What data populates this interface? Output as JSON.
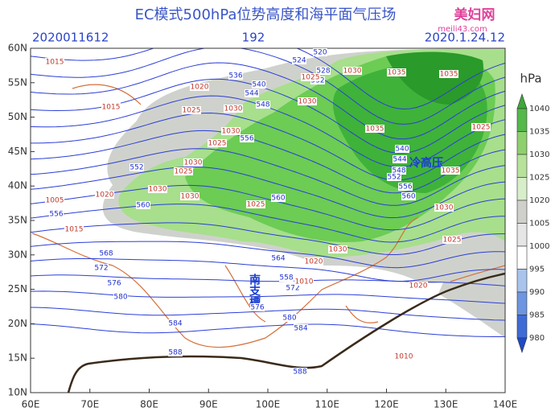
{
  "header": {
    "title": "EC模式500hPa位势高度和海平面气压场",
    "init_time": "2020011612",
    "forecast_hour": "192",
    "valid_time": "2020.1.24.12",
    "watermark": "美妇网",
    "watermark_url": "meili43.com"
  },
  "map": {
    "lat_labels": [
      "60N",
      "55N",
      "50N",
      "45N",
      "40N",
      "35N",
      "30N",
      "25N",
      "20N",
      "15N",
      "10N"
    ],
    "lon_labels": [
      "60E",
      "70E",
      "80E",
      "90E",
      "100E",
      "110E",
      "120E",
      "130E",
      "140E"
    ],
    "annotations": [
      "冷高压",
      "南支槽"
    ],
    "height_labels": [
      520,
      524,
      528,
      532,
      536,
      540,
      544,
      548,
      552,
      556,
      560,
      556,
      564,
      568,
      572,
      576,
      580,
      584,
      588,
      588,
      540,
      544,
      548,
      552,
      556,
      560,
      560,
      572,
      576,
      580,
      584,
      558
    ],
    "pressure_labels": [
      1035,
      1035,
      1030,
      1025,
      1030,
      1025,
      1030,
      1030,
      1025,
      1030,
      1025,
      1030,
      1035,
      1035,
      1030,
      1025,
      1030,
      1020,
      1015,
      1015,
      1020,
      1020,
      1025,
      1030,
      1025,
      1010,
      1015,
      1020,
      1005,
      1010
    ]
  },
  "colorbar": {
    "unit": "hPa",
    "ticks": [
      1040,
      1035,
      1030,
      1025,
      1020,
      1005,
      1000,
      995,
      990,
      985,
      980
    ]
  }
}
